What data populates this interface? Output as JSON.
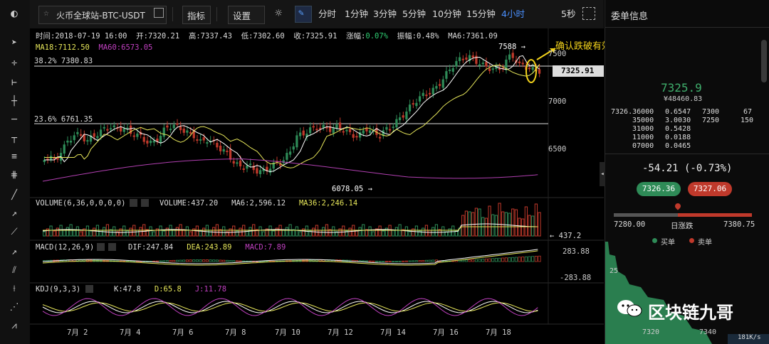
{
  "toolbar": {
    "market": "火币全球站-BTC-USDT",
    "indicators": "指标",
    "settings": "设置",
    "intervals": [
      "分时",
      "1分钟",
      "3分钟",
      "5分钟",
      "10分钟",
      "15分钟",
      "4小时"
    ],
    "refresh": "5秒"
  },
  "info": {
    "time": "时间:2018-07-19 16:00",
    "open": "开:7320.21",
    "high": "高:7337.43",
    "low": "低:7302.60",
    "close": "收:7325.91",
    "change_label": "涨幅:",
    "change_value": "0.07%",
    "amplitude": "振幅:0.48%",
    "ma6": "MA6:7361.09",
    "ma18": "MA18:7112.50",
    "ma60": "MA60:6573.05"
  },
  "fib": {
    "level1": "38.2% 7380.83",
    "level2": "23.6% 6761.35"
  },
  "annotations": {
    "high_mark": "7588 →",
    "low_mark": "6078.05 →",
    "breakdown": "确认跌破有效",
    "current_price": "7325.91"
  },
  "price_axis": [
    "7500",
    "7000",
    "6500"
  ],
  "volume": {
    "title": "VOLUME(6,36,0,0,0,0)",
    "value": "VOLUME:437.20",
    "ma6": "MA6:2,596.12",
    "ma36": "MA36:2,246.14",
    "last": "← 437.2"
  },
  "macd": {
    "title": "MACD(12,26,9)",
    "dif": "DIF:247.84",
    "dea": "DEA:243.89",
    "macd": "MACD:7.89",
    "top": "283.88",
    "bottom": "-283.88"
  },
  "kdj": {
    "title": "KDJ(9,3,3)",
    "k": "K:47.8",
    "d": "D:65.8",
    "j": "J:11.78"
  },
  "dates": [
    "7月 2",
    "7月 4",
    "7月 6",
    "7月 8",
    "7月 10",
    "7月 12",
    "7月 14",
    "7月 16",
    "7月 18"
  ],
  "right_panel": {
    "title": "委单信息",
    "price": "7325.9",
    "price_cny": "¥48460.83",
    "orders_left": [
      {
        "price": "7326.36000",
        "amount": "0.6547"
      },
      {
        "price": "35000",
        "amount": "3.0030"
      },
      {
        "price": "31000",
        "amount": "0.5428"
      },
      {
        "price": "11000",
        "amount": "0.0188"
      },
      {
        "price": "07000",
        "amount": "0.0465"
      }
    ],
    "orders_right": [
      {
        "price": "7300",
        "amount": "67"
      },
      {
        "price": "7250",
        "amount": "150"
      }
    ],
    "change": "-54.21 (-0.73%)",
    "buy_price": "7326.36",
    "sell_price": "7327.06",
    "range_low": "7280.00",
    "range_label": "日涨跌",
    "range_high": "7380.75",
    "legend_buy": "买单",
    "legend_sell": "卖单",
    "depth_tick": "25",
    "depth_x1": "7320",
    "depth_x2": "7340",
    "watermark": "区块链九哥",
    "net_speed": "181K/s",
    "colors": {
      "up": "#2e8b57",
      "down": "#c0392b",
      "fib_line": "#e0e0e0"
    }
  }
}
